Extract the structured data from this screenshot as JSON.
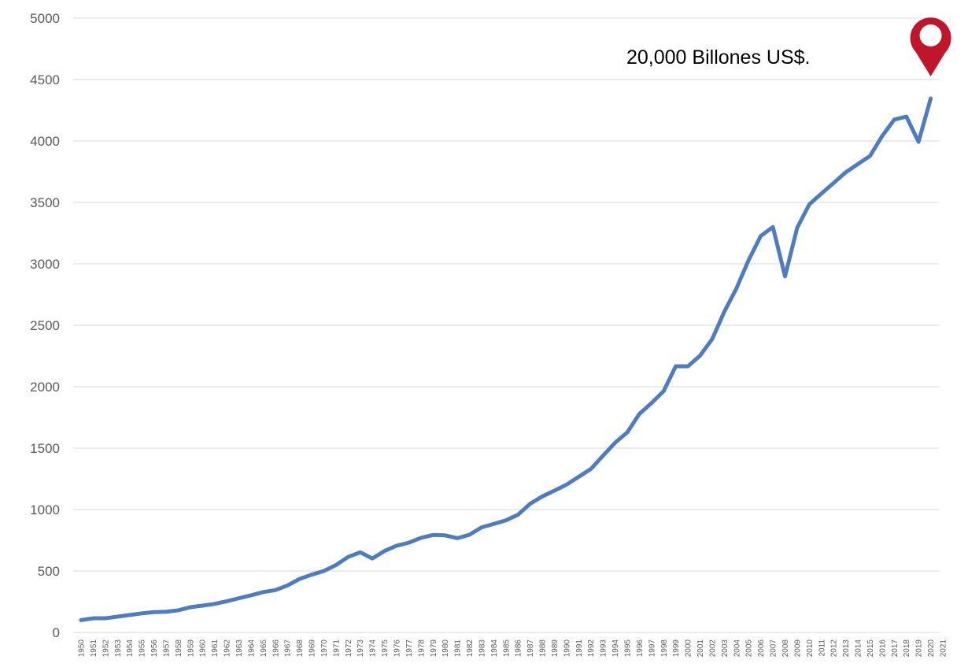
{
  "chart_data": {
    "type": "line",
    "title": "",
    "xlabel": "",
    "ylabel": "",
    "ylim": [
      0,
      5000
    ],
    "yticks": [
      0,
      500,
      1000,
      1500,
      2000,
      2500,
      3000,
      3500,
      4000,
      4500,
      5000
    ],
    "grid": "horizontal",
    "legend": "none",
    "x": [
      "1950",
      "1951",
      "1952",
      "1953",
      "1954",
      "1955",
      "1956",
      "1957",
      "1958",
      "1959",
      "1960",
      "1961",
      "1962",
      "1963",
      "1964",
      "1965",
      "1966",
      "1967",
      "1968",
      "1969",
      "1970",
      "1971",
      "1972",
      "1973",
      "1974",
      "1975",
      "1976",
      "1977",
      "1978",
      "1979",
      "1980",
      "1981",
      "1982",
      "1983",
      "1984",
      "1985",
      "1986",
      "1987",
      "1988",
      "1989",
      "1990",
      "1991",
      "1992",
      "1993",
      "1994",
      "1995",
      "1996",
      "1997",
      "1998",
      "1999",
      "2000",
      "2001",
      "2002",
      "2003",
      "2004",
      "2005",
      "2006",
      "2007",
      "2008",
      "2009",
      "2010",
      "2011",
      "2012",
      "2013",
      "2014",
      "2015",
      "2016",
      "2017",
      "2018",
      "2019",
      "2020",
      "2021"
    ],
    "series": [
      {
        "values": [
          100,
          115,
          115,
          128,
          142,
          155,
          165,
          168,
          180,
          205,
          218,
          232,
          254,
          278,
          302,
          328,
          344,
          382,
          435,
          470,
          500,
          548,
          614,
          652,
          602,
          663,
          706,
          730,
          770,
          793,
          790,
          767,
          795,
          855,
          883,
          912,
          958,
          1047,
          1107,
          1154,
          1203,
          1267,
          1330,
          1438,
          1544,
          1628,
          1778,
          1867,
          1964,
          2167,
          2166,
          2253,
          2388,
          2611,
          2801,
          3030,
          3227,
          3300,
          2898,
          3293,
          3484,
          3572,
          3658,
          3745,
          3812,
          3878,
          4040,
          4174,
          4198,
          3993,
          4346,
          null
        ],
        "color": "#4f7cc0"
      }
    ],
    "annotations": [
      {
        "text": "20,000 Billones US$.",
        "icon": "map-pin-icon",
        "color": "#c0162b",
        "x": "2020"
      }
    ]
  }
}
